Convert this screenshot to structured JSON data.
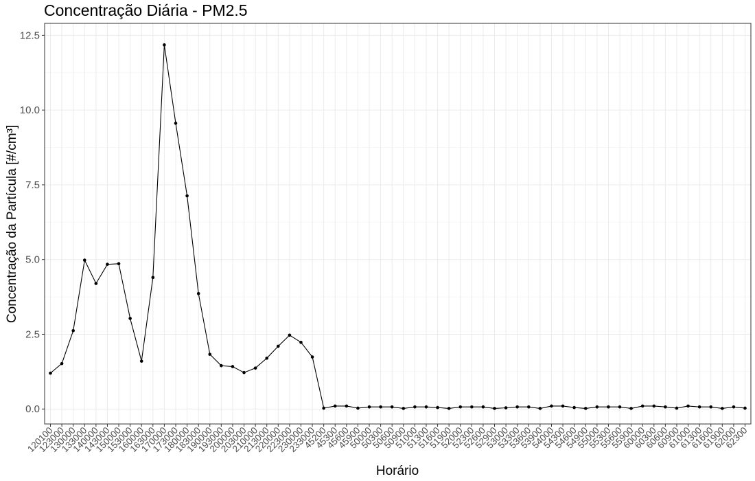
{
  "chart_data": {
    "type": "line",
    "title": "Concentração Diária - PM2.5",
    "xlabel": "Horário",
    "ylabel": "Concentração da Partícula [#/cm³]",
    "ylim": [
      -0.5,
      12.9
    ],
    "y_ticks": [
      0.0,
      2.5,
      5.0,
      7.5,
      10.0,
      12.5
    ],
    "y_tick_labels": [
      "0.0",
      "2.5",
      "5.0",
      "7.5",
      "10.0",
      "12.5"
    ],
    "grid": true,
    "theme": "bw",
    "line_color": "#000000",
    "point_color": "#000000",
    "x": [
      "120100",
      "123000",
      "130000",
      "133000",
      "140000",
      "143000",
      "150000",
      "153000",
      "160000",
      "163000",
      "170000",
      "173000",
      "180000",
      "183000",
      "190000",
      "193000",
      "200000",
      "203000",
      "210000",
      "213000",
      "220000",
      "223000",
      "230000",
      "233000",
      "45200",
      "45300",
      "45600",
      "45900",
      "50000",
      "50300",
      "50600",
      "50900",
      "51000",
      "51300",
      "51600",
      "51900",
      "52000",
      "52300",
      "52600",
      "52900",
      "53000",
      "53300",
      "53600",
      "53900",
      "54000",
      "54300",
      "54600",
      "54900",
      "55000",
      "55300",
      "55600",
      "55900",
      "60000",
      "60300",
      "60600",
      "60900",
      "61000",
      "61300",
      "61600",
      "61900",
      "62000",
      "62300"
    ],
    "values": [
      1.2,
      1.52,
      2.62,
      4.98,
      4.2,
      4.84,
      4.86,
      3.03,
      1.6,
      4.4,
      12.18,
      9.56,
      7.13,
      3.86,
      1.83,
      1.45,
      1.42,
      1.22,
      1.37,
      1.7,
      2.1,
      2.47,
      2.23,
      1.74,
      0.03,
      0.1,
      0.1,
      0.03,
      0.07,
      0.07,
      0.07,
      0.02,
      0.07,
      0.07,
      0.05,
      0.02,
      0.07,
      0.07,
      0.07,
      0.02,
      0.04,
      0.07,
      0.07,
      0.02,
      0.1,
      0.1,
      0.05,
      0.02,
      0.07,
      0.07,
      0.07,
      0.02,
      0.1,
      0.1,
      0.07,
      0.03,
      0.1,
      0.07,
      0.07,
      0.02,
      0.07,
      0.03
    ]
  }
}
